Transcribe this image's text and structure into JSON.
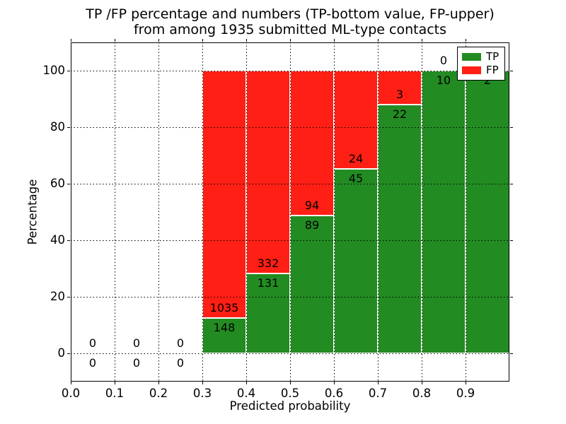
{
  "chart_data": {
    "type": "bar",
    "stacked": true,
    "title_lines": [
      "TP /FP percentage and numbers (TP-bottom value, FP-upper)",
      "from among 1935 submitted ML-type contacts"
    ],
    "total_contacts": 1935,
    "xlabel": "Predicted probability",
    "ylabel": "Percentage",
    "xlim": [
      0.0,
      1.0
    ],
    "ylim": [
      -10,
      110
    ],
    "grid": true,
    "x_ticks": [
      {
        "value": 0.0,
        "label": "0.0"
      },
      {
        "value": 0.1,
        "label": "0.1"
      },
      {
        "value": 0.2,
        "label": "0.2"
      },
      {
        "value": 0.3,
        "label": "0.3"
      },
      {
        "value": 0.4,
        "label": "0.4"
      },
      {
        "value": 0.5,
        "label": "0.5"
      },
      {
        "value": 0.6,
        "label": "0.6"
      },
      {
        "value": 0.7,
        "label": "0.7"
      },
      {
        "value": 0.8,
        "label": "0.8"
      },
      {
        "value": 0.9,
        "label": "0.9"
      }
    ],
    "y_ticks": [
      {
        "value": 0,
        "label": "0"
      },
      {
        "value": 20,
        "label": "20"
      },
      {
        "value": 40,
        "label": "40"
      },
      {
        "value": 60,
        "label": "60"
      },
      {
        "value": 80,
        "label": "80"
      },
      {
        "value": 100,
        "label": "100"
      }
    ],
    "bins": [
      {
        "x0": 0.0,
        "x1": 0.1,
        "tp": 0,
        "fp": 0
      },
      {
        "x0": 0.1,
        "x1": 0.2,
        "tp": 0,
        "fp": 0
      },
      {
        "x0": 0.2,
        "x1": 0.3,
        "tp": 0,
        "fp": 0
      },
      {
        "x0": 0.3,
        "x1": 0.4,
        "tp": 148,
        "fp": 1035
      },
      {
        "x0": 0.4,
        "x1": 0.5,
        "tp": 131,
        "fp": 332
      },
      {
        "x0": 0.5,
        "x1": 0.6,
        "tp": 89,
        "fp": 94
      },
      {
        "x0": 0.6,
        "x1": 0.7,
        "tp": 45,
        "fp": 24
      },
      {
        "x0": 0.7,
        "x1": 0.8,
        "tp": 22,
        "fp": 3
      },
      {
        "x0": 0.8,
        "x1": 0.9,
        "tp": 10,
        "fp": 0
      },
      {
        "x0": 0.9,
        "x1": 1.0,
        "tp": 2,
        "fp": 0
      }
    ],
    "legend": {
      "position": "upper right",
      "entries": [
        {
          "label": "TP",
          "color": "#228b22"
        },
        {
          "label": "FP",
          "color": "#ff1f14"
        }
      ]
    },
    "colors": {
      "tp": "#228b22",
      "fp": "#ff1f14",
      "bar_edge": "#ffffff",
      "grid": "#000000"
    }
  }
}
